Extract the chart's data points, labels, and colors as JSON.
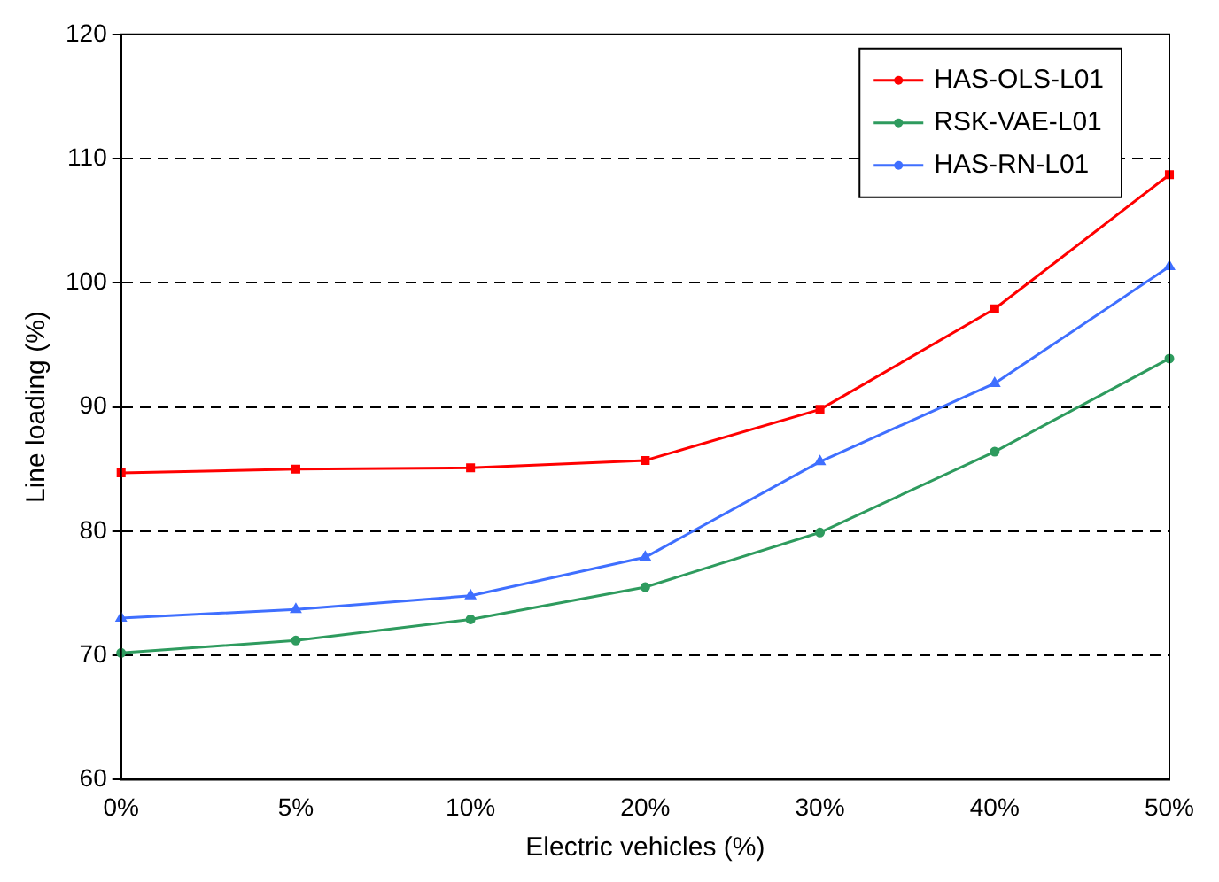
{
  "chart_data": {
    "type": "line",
    "xlabel": "Electric vehicles (%)",
    "ylabel": "Line loading (%)",
    "categories": [
      "0%",
      "5%",
      "10%",
      "20%",
      "30%",
      "40%",
      "50%"
    ],
    "series": [
      {
        "name": "HAS-OLS-L01",
        "color": "#ff0000",
        "marker": "square",
        "values": [
          84.7,
          85.0,
          85.1,
          85.7,
          89.8,
          97.9,
          108.7
        ]
      },
      {
        "name": "RSK-VAE-L01",
        "color": "#2e9b5e",
        "marker": "circle",
        "values": [
          70.2,
          71.2,
          72.9,
          75.5,
          79.9,
          86.4,
          93.9
        ]
      },
      {
        "name": "HAS-RN-L01",
        "color": "#3f6fff",
        "marker": "triangle",
        "values": [
          73.0,
          73.7,
          74.8,
          77.9,
          85.6,
          91.9,
          101.3
        ]
      }
    ],
    "ylim": [
      60,
      120
    ],
    "yticks": [
      60,
      70,
      80,
      90,
      100,
      110,
      120
    ],
    "grid": "y",
    "legend": "top right",
    "line_style": "solid"
  }
}
